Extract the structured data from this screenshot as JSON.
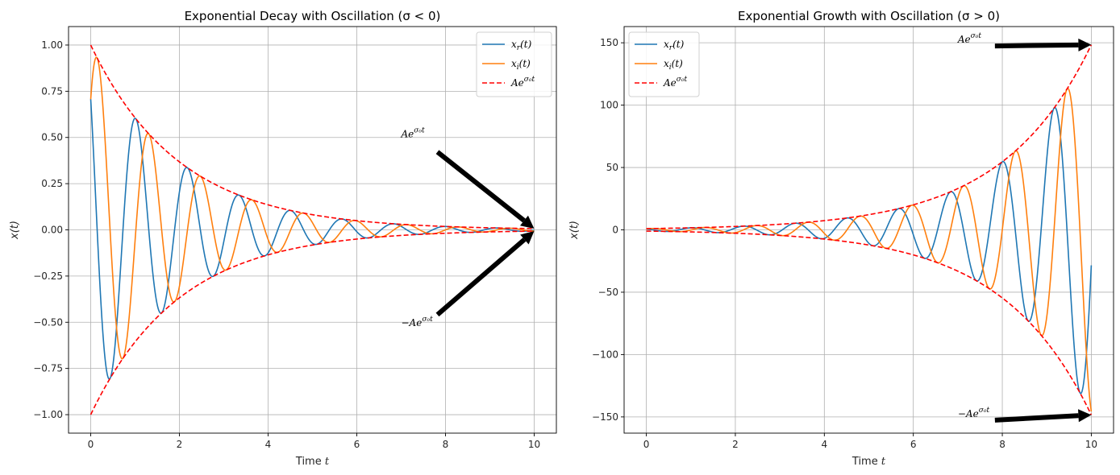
{
  "chart_data": [
    {
      "type": "line",
      "title": "Exponential Decay with Oscillation (σ < 0)",
      "xlabel": "Time t",
      "ylabel": "x(t)",
      "xlim": [
        -0.5,
        10.5
      ],
      "ylim": [
        -1.1,
        1.1
      ],
      "xticks": [
        0,
        2,
        4,
        6,
        8,
        10
      ],
      "yticks": [
        -1.0,
        -0.75,
        -0.5,
        -0.25,
        0.0,
        0.25,
        0.5,
        0.75,
        1.0
      ],
      "ytick_labels": [
        "−1.00",
        "−0.75",
        "−0.50",
        "−0.25",
        "0.00",
        "0.25",
        "0.50",
        "0.75",
        "1.00"
      ],
      "grid": true,
      "legend_position": "upper-right",
      "model": {
        "amplitude": 1.0,
        "sigma0": -0.5,
        "omega": 5.4,
        "phase": 0.785,
        "t_start": 0,
        "t_end": 10
      },
      "series": [
        {
          "name": "x_r(t)",
          "kind": "cos",
          "color": "#1f77b4",
          "dash": "solid"
        },
        {
          "name": "x_i(t)",
          "kind": "sin",
          "color": "#ff7f0e",
          "dash": "solid"
        },
        {
          "name": "Ae^{σ0 t}",
          "kind": "envelope",
          "color": "#ff0000",
          "dash": "dashed"
        }
      ],
      "annotations": [
        {
          "text": "Ae",
          "sup": "σ0t",
          "text_xy": [
            7.0,
            0.5
          ],
          "arrow_to": [
            10,
            0.0067
          ]
        },
        {
          "text": "−Ae",
          "sup": "σ0t",
          "text_xy": [
            7.0,
            -0.52
          ],
          "arrow_to": [
            10,
            -0.0067
          ]
        }
      ]
    },
    {
      "type": "line",
      "title": "Exponential Growth with Oscillation (σ > 0)",
      "xlabel": "Time t",
      "ylabel": "x(t)",
      "xlim": [
        -0.5,
        10.5
      ],
      "ylim": [
        -163,
        163
      ],
      "xticks": [
        0,
        2,
        4,
        6,
        8,
        10
      ],
      "yticks": [
        -150,
        -100,
        -50,
        0,
        50,
        100,
        150
      ],
      "ytick_labels": [
        "−150",
        "−100",
        "−50",
        "0",
        "50",
        "100",
        "150"
      ],
      "grid": true,
      "legend_position": "upper-left",
      "model": {
        "amplitude": 1.0,
        "sigma0": 0.5,
        "omega": 5.4,
        "phase": 0.785,
        "t_start": 0,
        "t_end": 10
      },
      "series": [
        {
          "name": "x_r(t)",
          "kind": "cos",
          "color": "#1f77b4",
          "dash": "solid"
        },
        {
          "name": "x_i(t)",
          "kind": "sin",
          "color": "#ff7f0e",
          "dash": "solid"
        },
        {
          "name": "Ae^{σ0 t}",
          "kind": "envelope",
          "color": "#ff0000",
          "dash": "dashed"
        }
      ],
      "annotations": [
        {
          "text": "Ae",
          "sup": "σ0t",
          "text_xy": [
            7.0,
            150
          ],
          "arrow_to": [
            10,
            148.4
          ]
        },
        {
          "text": "−Ae",
          "sup": "σ0t",
          "text_xy": [
            7.0,
            -150
          ],
          "arrow_to": [
            10,
            -148.4
          ]
        }
      ]
    }
  ]
}
